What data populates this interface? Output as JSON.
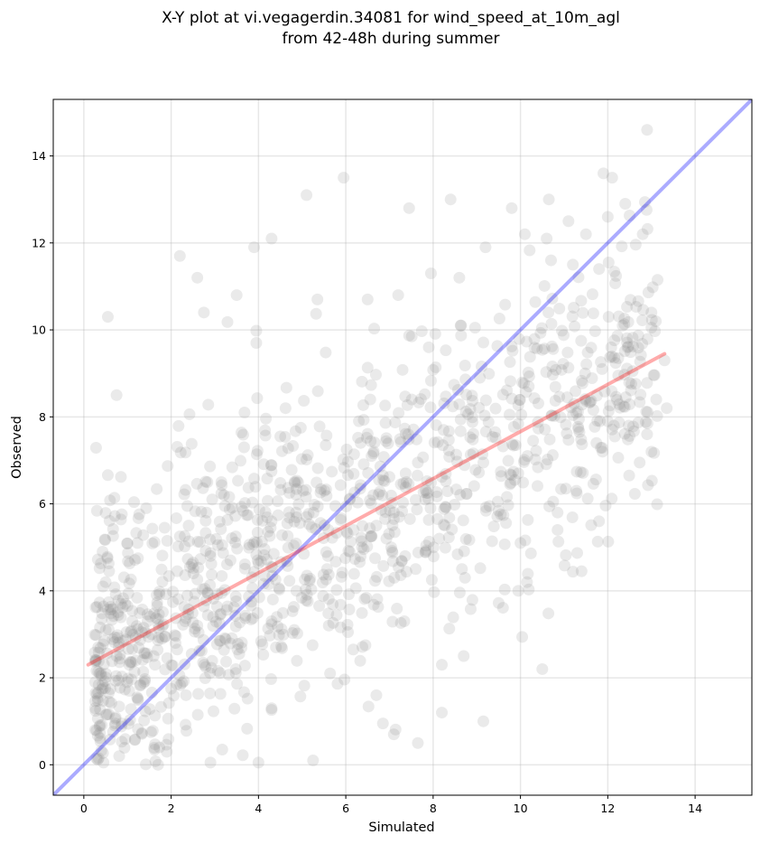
{
  "chart_data": {
    "type": "scatter",
    "title_line1": "X-Y plot at vi.vegagerdin.34081 for wind_speed_at_10m_agl",
    "title_line2": "from 42-48h during summer",
    "xlabel": "Simulated",
    "ylabel": "Observed",
    "xlim": [
      -0.7,
      15.3
    ],
    "ylim": [
      -0.7,
      15.3
    ],
    "xticks": [
      0,
      2,
      4,
      6,
      8,
      10,
      12,
      14
    ],
    "yticks": [
      0,
      2,
      4,
      6,
      8,
      10,
      12,
      14
    ],
    "grid": true,
    "point_color": "#808080",
    "identity_line": {
      "x": [
        -0.7,
        15.3
      ],
      "y": [
        -0.7,
        15.3
      ],
      "color": "#0000ff"
    },
    "fit_line": {
      "x": [
        0.1,
        13.3
      ],
      "y": [
        2.3,
        9.45
      ],
      "color": "#ff0000"
    },
    "generator": {
      "count": 1300,
      "seed": 34081
    },
    "notable_points": [
      {
        "x": 12.9,
        "y": 14.6
      },
      {
        "x": 11.9,
        "y": 13.6
      },
      {
        "x": 12.1,
        "y": 13.5
      },
      {
        "x": 5.1,
        "y": 13.1
      },
      {
        "x": 5.95,
        "y": 13.5
      },
      {
        "x": 8.4,
        "y": 13.0
      },
      {
        "x": 10.65,
        "y": 13.0
      },
      {
        "x": 12.4,
        "y": 12.9
      },
      {
        "x": 7.45,
        "y": 12.8
      },
      {
        "x": 9.8,
        "y": 12.8
      },
      {
        "x": 12.0,
        "y": 12.6
      },
      {
        "x": 11.1,
        "y": 12.5
      },
      {
        "x": 10.1,
        "y": 12.2
      },
      {
        "x": 11.5,
        "y": 12.2
      },
      {
        "x": 12.8,
        "y": 12.2
      },
      {
        "x": 10.6,
        "y": 12.1
      },
      {
        "x": 4.3,
        "y": 12.1
      },
      {
        "x": 3.9,
        "y": 11.9
      },
      {
        "x": 9.2,
        "y": 11.9
      },
      {
        "x": 2.2,
        "y": 11.7
      },
      {
        "x": 10.7,
        "y": 11.6
      },
      {
        "x": 11.2,
        "y": 11.5
      },
      {
        "x": 11.8,
        "y": 11.4
      },
      {
        "x": 7.95,
        "y": 11.3
      },
      {
        "x": 2.6,
        "y": 11.2
      },
      {
        "x": 8.6,
        "y": 11.2
      },
      {
        "x": 3.5,
        "y": 10.8
      },
      {
        "x": 5.35,
        "y": 10.7
      },
      {
        "x": 6.5,
        "y": 10.7
      },
      {
        "x": 7.2,
        "y": 10.8
      },
      {
        "x": 0.55,
        "y": 10.3
      },
      {
        "x": 2.75,
        "y": 10.4
      },
      {
        "x": 13.0,
        "y": 10.4
      },
      {
        "x": 13.1,
        "y": 10.2
      },
      {
        "x": 3.95,
        "y": 9.7
      },
      {
        "x": 12.45,
        "y": 9.6
      },
      {
        "x": 13.3,
        "y": 9.3
      },
      {
        "x": 13.35,
        "y": 8.2
      },
      {
        "x": 12.9,
        "y": 7.6
      },
      {
        "x": 13.0,
        "y": 7.2
      },
      {
        "x": 12.0,
        "y": 7.9
      },
      {
        "x": 0.75,
        "y": 8.5
      },
      {
        "x": 11.8,
        "y": 5.6
      },
      {
        "x": 10.5,
        "y": 2.2
      },
      {
        "x": 9.15,
        "y": 1.0
      },
      {
        "x": 8.2,
        "y": 1.2
      },
      {
        "x": 7.65,
        "y": 0.5
      },
      {
        "x": 5.25,
        "y": 0.1
      },
      {
        "x": 4.0,
        "y": 0.05
      },
      {
        "x": 2.9,
        "y": 0.05
      },
      {
        "x": 1.7,
        "y": 0.0
      },
      {
        "x": 0.45,
        "y": 0.05
      },
      {
        "x": 10.85,
        "y": 5.4
      },
      {
        "x": 9.95,
        "y": 4.0
      },
      {
        "x": 10.15,
        "y": 4.2
      },
      {
        "x": 10.0,
        "y": 5.1
      },
      {
        "x": 8.2,
        "y": 2.3
      },
      {
        "x": 8.7,
        "y": 2.5
      },
      {
        "x": 6.7,
        "y": 1.6
      },
      {
        "x": 7.1,
        "y": 0.7
      }
    ]
  }
}
